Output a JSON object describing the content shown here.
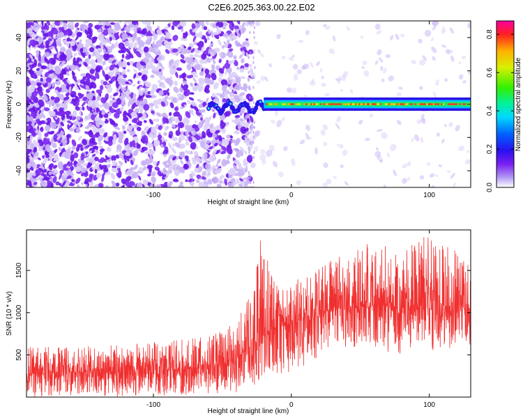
{
  "title": "C2E6.2025.363.00.22.E02",
  "chart_data": [
    {
      "type": "heatmap",
      "xlabel": "Height of straight line (km)",
      "ylabel": "Frequency (Hz)",
      "xlim": [
        -192,
        130
      ],
      "ylim": [
        -50,
        50
      ],
      "x_tick_labels": [
        {
          "value": -100,
          "label": "-100"
        },
        {
          "value": 0,
          "label": "0"
        },
        {
          "value": 100,
          "label": "100"
        }
      ],
      "y_tick_labels": [
        {
          "value": -40,
          "label": "-40"
        },
        {
          "value": -20,
          "label": "-20"
        },
        {
          "value": 0,
          "label": "0"
        },
        {
          "value": 20,
          "label": "20"
        },
        {
          "value": 40,
          "label": "40"
        }
      ],
      "colorbar": {
        "label": "Normalized spectral amplitude",
        "range": [
          0.0,
          0.87
        ],
        "tick_labels": [
          {
            "value": 0.0,
            "label": "0.0"
          },
          {
            "value": 0.2,
            "label": "0.2"
          },
          {
            "value": 0.4,
            "label": "0.4"
          },
          {
            "value": 0.6,
            "label": "0.6"
          },
          {
            "value": 0.8,
            "label": "0.8"
          }
        ]
      },
      "features": {
        "noise_region_x": [
          -192,
          -28
        ],
        "carrier_start_x": -60,
        "carrier_center_hz": 0,
        "carrier_peak_amplitude": 0.85
      }
    },
    {
      "type": "line",
      "xlabel": "Height of straight line (km)",
      "ylabel": "SNR (10 * v/v)",
      "xlim": [
        -192,
        130
      ],
      "ylim": [
        0,
        1980
      ],
      "color": "#f03030",
      "x_tick_labels": [
        {
          "value": -100,
          "label": "-100"
        },
        {
          "value": 0,
          "label": "0"
        },
        {
          "value": 100,
          "label": "100"
        }
      ],
      "y_tick_labels": [
        {
          "value": 500,
          "label": "500"
        },
        {
          "value": 1000,
          "label": "1000"
        },
        {
          "value": 1500,
          "label": "1500"
        }
      ],
      "envelope": [
        {
          "x": -192,
          "low": 0,
          "mean": 280,
          "high": 600
        },
        {
          "x": -150,
          "low": 0,
          "mean": 300,
          "high": 600
        },
        {
          "x": -100,
          "low": 10,
          "mean": 310,
          "high": 650
        },
        {
          "x": -60,
          "low": 40,
          "mean": 350,
          "high": 720
        },
        {
          "x": -40,
          "low": 50,
          "mean": 450,
          "high": 900
        },
        {
          "x": -30,
          "low": 100,
          "mean": 600,
          "high": 1200
        },
        {
          "x": -22,
          "low": 200,
          "mean": 700,
          "high": 1900
        },
        {
          "x": -10,
          "low": 250,
          "mean": 820,
          "high": 1300
        },
        {
          "x": 0,
          "low": 300,
          "mean": 880,
          "high": 1350
        },
        {
          "x": 20,
          "low": 450,
          "mean": 1000,
          "high": 1550
        },
        {
          "x": 40,
          "low": 600,
          "mean": 1080,
          "high": 1700
        },
        {
          "x": 60,
          "low": 550,
          "mean": 1080,
          "high": 1850
        },
        {
          "x": 80,
          "low": 500,
          "mean": 1060,
          "high": 1750
        },
        {
          "x": 100,
          "low": 550,
          "mean": 1060,
          "high": 1950
        },
        {
          "x": 130,
          "low": 600,
          "mean": 1050,
          "high": 1600
        }
      ]
    }
  ]
}
